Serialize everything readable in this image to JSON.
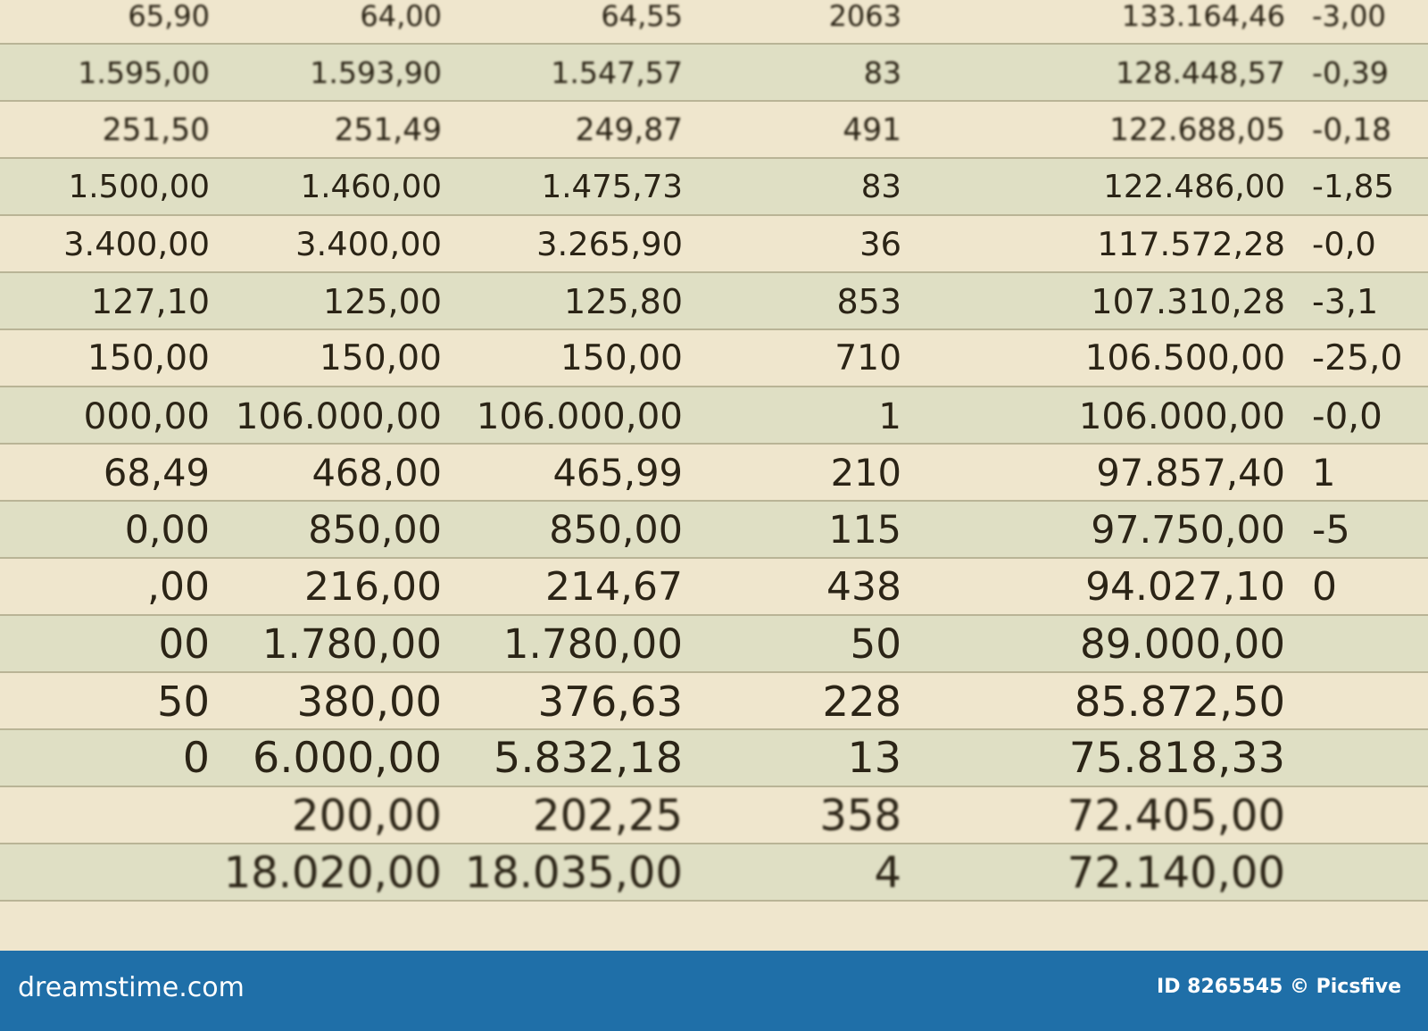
{
  "table": {
    "rows": [
      {
        "a": "65,90",
        "b": "64,00",
        "c": "64,55",
        "d": "2063",
        "e": "133.164,46",
        "f": "-3,00"
      },
      {
        "a": "1.595,00",
        "b": "1.593,90",
        "c": "1.547,57",
        "d": "83",
        "e": "128.448,57",
        "f": "-0,39"
      },
      {
        "a": "251,50",
        "b": "251,49",
        "c": "249,87",
        "d": "491",
        "e": "122.688,05",
        "f": "-0,18"
      },
      {
        "a": "1.500,00",
        "b": "1.460,00",
        "c": "1.475,73",
        "d": "83",
        "e": "122.486,00",
        "f": "-1,85"
      },
      {
        "a": "3.400,00",
        "b": "3.400,00",
        "c": "3.265,90",
        "d": "36",
        "e": "117.572,28",
        "f": "-0,0"
      },
      {
        "a": "127,10",
        "b": "125,00",
        "c": "125,80",
        "d": "853",
        "e": "107.310,28",
        "f": "-3,1"
      },
      {
        "a": "150,00",
        "b": "150,00",
        "c": "150,00",
        "d": "710",
        "e": "106.500,00",
        "f": "-25,0"
      },
      {
        "a": "000,00",
        "b": "106.000,00",
        "c": "106.000,00",
        "d": "1",
        "e": "106.000,00",
        "f": "-0,0"
      },
      {
        "a": "68,49",
        "b": "468,00",
        "c": "465,99",
        "d": "210",
        "e": "97.857,40",
        "f": "1"
      },
      {
        "a": "0,00",
        "b": "850,00",
        "c": "850,00",
        "d": "115",
        "e": "97.750,00",
        "f": "-5"
      },
      {
        "a": ",00",
        "b": "216,00",
        "c": "214,67",
        "d": "438",
        "e": "94.027,10",
        "f": "0"
      },
      {
        "a": "00",
        "b": "1.780,00",
        "c": "1.780,00",
        "d": "50",
        "e": "89.000,00"
      },
      {
        "a": "50",
        "b": "380,00",
        "c": "376,63",
        "d": "228",
        "e": "85.872,50"
      },
      {
        "a": "0",
        "b": "6.000,00",
        "c": "5.832,18",
        "d": "13",
        "e": "75.818,33"
      },
      {
        "b": "200,00",
        "c": "202,25",
        "d": "358",
        "e": "72.405,00"
      },
      {
        "b": "18.020,00",
        "c": "18.035,00",
        "d": "4",
        "e": "72.140,00"
      }
    ]
  },
  "footer": {
    "site": "dreamstime.com",
    "credit": "ID 8265545 © Picsfive"
  }
}
